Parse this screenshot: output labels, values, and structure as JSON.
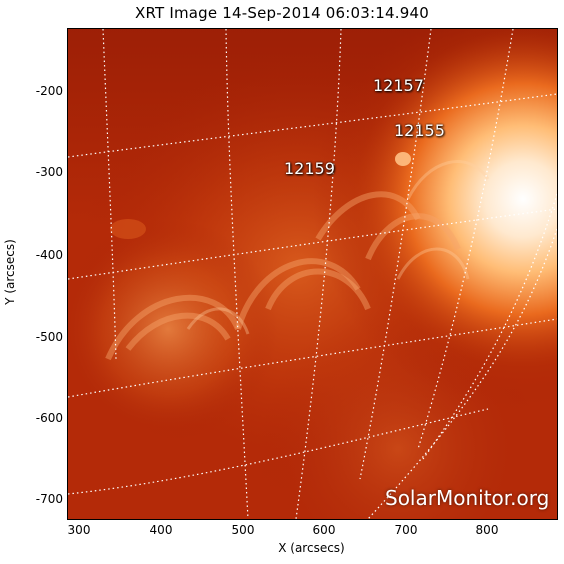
{
  "title": "XRT Image 14-Sep-2014 06:03:14.940",
  "axes": {
    "x": {
      "label": "X (arcsecs)",
      "ticks": [
        "300",
        "400",
        "500",
        "600",
        "700",
        "800"
      ]
    },
    "y": {
      "label": "Y (arcsecs)",
      "ticks": [
        "-200",
        "-300",
        "-400",
        "-500",
        "-600",
        "-700"
      ]
    }
  },
  "active_regions": [
    {
      "label": "12157"
    },
    {
      "label": "12155"
    },
    {
      "label": "12159"
    }
  ],
  "watermark": "SolarMonitor.org",
  "colors": {
    "background_dark": "#a51f06",
    "background_mid": "#c4330b",
    "bright_core": "#fff8ef",
    "bright_orange": "#ff9b3d",
    "grid_line": "#ffffff"
  }
}
